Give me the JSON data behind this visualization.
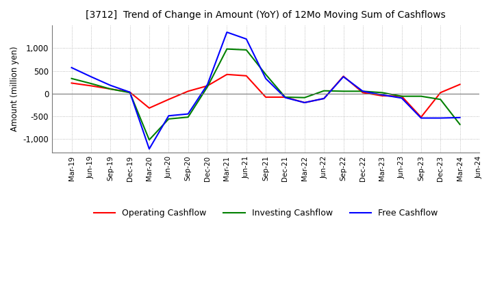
{
  "title": "[3712]  Trend of Change in Amount (YoY) of 12Mo Moving Sum of Cashflows",
  "ylabel": "Amount (million yen)",
  "background_color": "#ffffff",
  "grid_color": "#aaaaaa",
  "ylim": [
    -1300,
    1500
  ],
  "yticks": [
    -1000,
    -500,
    0,
    500,
    1000
  ],
  "labels": [
    "Mar-19",
    "Jun-19",
    "Sep-19",
    "Dec-19",
    "Mar-20",
    "Jun-20",
    "Sep-20",
    "Dec-20",
    "Mar-21",
    "Jun-21",
    "Sep-21",
    "Dec-21",
    "Mar-22",
    "Jun-22",
    "Sep-22",
    "Dec-22",
    "Mar-23",
    "Jun-23",
    "Sep-23",
    "Dec-23",
    "Mar-24",
    "Jun-24"
  ],
  "operating": [
    230,
    170,
    100,
    30,
    -320,
    -130,
    50,
    170,
    420,
    390,
    -80,
    -80,
    -200,
    -110,
    380,
    20,
    -50,
    -60,
    -520,
    20,
    200,
    null
  ],
  "investing": [
    330,
    220,
    100,
    20,
    -1020,
    -560,
    -520,
    150,
    980,
    960,
    420,
    -80,
    -90,
    60,
    50,
    50,
    20,
    -60,
    -60,
    -130,
    -680,
    null
  ],
  "free": [
    570,
    370,
    180,
    30,
    -1220,
    -490,
    -450,
    200,
    1350,
    1200,
    330,
    -90,
    -200,
    -110,
    370,
    50,
    -30,
    -100,
    -540,
    -540,
    -530,
    null
  ],
  "op_color": "#ff0000",
  "inv_color": "#008000",
  "free_color": "#0000ff",
  "legend_labels": [
    "Operating Cashflow",
    "Investing Cashflow",
    "Free Cashflow"
  ]
}
